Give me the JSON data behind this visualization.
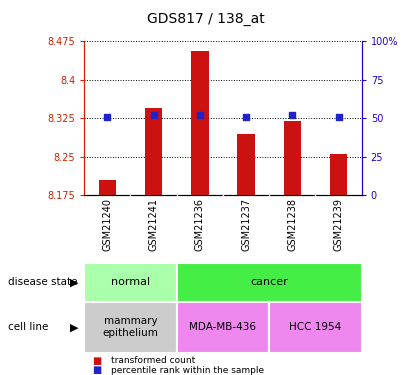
{
  "title": "GDS817 / 138_at",
  "samples": [
    "GSM21240",
    "GSM21241",
    "GSM21236",
    "GSM21237",
    "GSM21238",
    "GSM21239"
  ],
  "bar_values": [
    8.205,
    8.345,
    8.455,
    8.295,
    8.32,
    8.255
  ],
  "percentile_values": [
    51,
    52,
    52,
    51,
    52,
    51
  ],
  "y_min": 8.175,
  "y_max": 8.475,
  "y_ticks": [
    8.175,
    8.25,
    8.325,
    8.4,
    8.475
  ],
  "y_tick_labels": [
    "8.175",
    "8.25",
    "8.325",
    "8.4",
    "8.475"
  ],
  "right_y_ticks": [
    0,
    25,
    50,
    75,
    100
  ],
  "right_y_tick_labels": [
    "0",
    "25",
    "50",
    "75",
    "100%"
  ],
  "bar_color": "#cc1111",
  "percentile_color": "#2222cc",
  "disease_state_groups": [
    {
      "label": "normal",
      "start": 0,
      "end": 2,
      "color": "#aaffaa"
    },
    {
      "label": "cancer",
      "start": 2,
      "end": 6,
      "color": "#44ee44"
    }
  ],
  "cell_line_groups": [
    {
      "label": "mammary\nepithelium",
      "start": 0,
      "end": 2,
      "color": "#cccccc"
    },
    {
      "label": "MDA-MB-436",
      "start": 2,
      "end": 4,
      "color": "#ee88ee"
    },
    {
      "label": "HCC 1954",
      "start": 4,
      "end": 6,
      "color": "#ee88ee"
    }
  ],
  "legend_items": [
    {
      "label": "transformed count",
      "color": "#cc1111"
    },
    {
      "label": "percentile rank within the sample",
      "color": "#2222cc"
    }
  ],
  "label_disease": "disease state",
  "label_cell": "cell line",
  "bg_color": "#ffffff",
  "plot_bg": "#ffffff",
  "tick_bg": "#cccccc"
}
